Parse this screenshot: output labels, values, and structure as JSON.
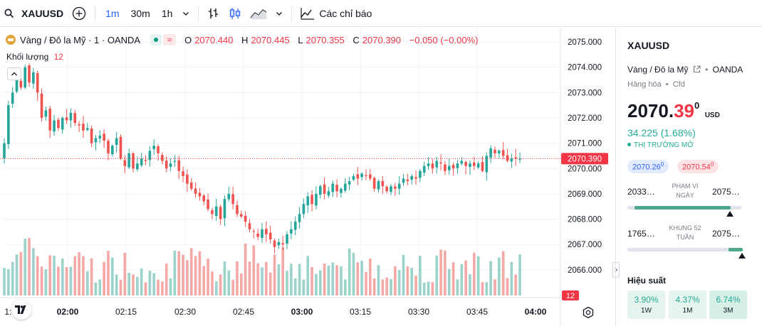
{
  "toolbar": {
    "symbol": "XAUUSD",
    "intervals": [
      "1m",
      "30m",
      "1h"
    ],
    "active_interval": "1m",
    "indicators_label": "Các chỉ báo"
  },
  "legend": {
    "title": "Vàng / Đô la Mỹ · 1 · OANDA",
    "o_label": "O",
    "o_value": "2070.440",
    "h_label": "H",
    "h_value": "2070.445",
    "l_label": "L",
    "l_value": "2070.355",
    "c_label": "C",
    "c_value": "2070.390",
    "change": "−0.050 (−0.00%)"
  },
  "volume_legend": {
    "label": "Khối lượng",
    "value": "12"
  },
  "colors": {
    "up": "#26a69a",
    "down": "#ef5350",
    "accent": "#2962ff",
    "vol_up": "#9bd3cb",
    "vol_down": "#f5a9a6"
  },
  "chart_data": {
    "type": "candlestick",
    "x_ticks": [
      "1:45",
      "02:00",
      "02:15",
      "02:30",
      "02:45",
      "03:00",
      "03:15",
      "03:30",
      "03:45",
      "04:00"
    ],
    "y_ticks": [
      "2075.000",
      "2074.000",
      "2073.000",
      "2072.000",
      "2071.000",
      "2070.000",
      "2069.000",
      "2068.000",
      "2067.000",
      "2066.000"
    ],
    "y_range": [
      2065.0,
      2075.35
    ],
    "last_price": "2070.390",
    "last_price_value": 2070.39,
    "last_volume_label": "12",
    "series_close": [
      2071.0,
      2072.5,
      2073.0,
      2073.5,
      2073.2,
      2074.0,
      2073.4,
      2073.8,
      2073.0,
      2072.0,
      2072.3,
      2071.5,
      2071.9,
      2071.6,
      2072.0,
      2071.9,
      2072.2,
      2071.8,
      2071.7,
      2071.5,
      2071.6,
      2071.0,
      2071.2,
      2071.3,
      2071.1,
      2070.6,
      2070.9,
      2071.2,
      2070.4,
      2070.1,
      2070.6,
      2070.0,
      2070.2,
      2070.4,
      2070.3,
      2070.7,
      2070.9,
      2070.6,
      2070.3,
      2070.0,
      2070.2,
      2070.3,
      2069.9,
      2069.7,
      2069.4,
      2069.2,
      2069.0,
      2068.9,
      2068.7,
      2068.4,
      2068.2,
      2068.5,
      2068.0,
      2068.8,
      2069.0,
      2068.6,
      2068.2,
      2068.1,
      2067.9,
      2067.6,
      2067.5,
      2067.3,
      2067.6,
      2067.4,
      2067.2,
      2066.9,
      2067.1,
      2067.0,
      2067.4,
      2067.6,
      2067.9,
      2068.2,
      2068.6,
      2068.9,
      2068.6,
      2069.0,
      2069.3,
      2069.0,
      2069.1,
      2069.4,
      2069.1,
      2069.2,
      2069.4,
      2069.5,
      2069.7,
      2069.6,
      2069.8,
      2069.7,
      2069.6,
      2069.2,
      2069.5,
      2069.3,
      2069.1,
      2069.3,
      2069.2,
      2069.4,
      2069.6,
      2069.5,
      2069.7,
      2069.6,
      2069.9,
      2070.1,
      2070.2,
      2070.0,
      2070.3,
      2070.2,
      2069.9,
      2070.1,
      2070.0,
      2070.2,
      2070.3,
      2070.1,
      2070.2,
      2070.1,
      2070.2,
      2069.9,
      2070.5,
      2070.8,
      2070.6,
      2070.7,
      2070.5,
      2070.3,
      2070.4,
      2070.4,
      2070.39
    ]
  },
  "side_panel": {
    "symbol": "XAUUSD",
    "description": "Vàng / Đô la Mỹ",
    "exchange": "OANDA",
    "category": "Hàng hóa",
    "type": "Cfd",
    "price_main": "2070.",
    "price_decimals": "39",
    "price_sup": "0",
    "currency": "USD",
    "change": "34.225 (1.68%)",
    "market_status": "THỊ TRƯỜNG MỞ",
    "bid_main": "2070.26",
    "bid_sup": "0",
    "ask_main": "2070.54",
    "ask_sup": "0",
    "day_low": "2033…",
    "day_high": "2075…",
    "day_label": "PHẠM VI NGÀY",
    "week52_low": "1765…",
    "week52_high": "2075…",
    "week52_label": "KHUNG 52 TUẦN",
    "performance_title": "Hiệu suất",
    "perf": [
      {
        "value": "3.90%",
        "period": "1W"
      },
      {
        "value": "4.37%",
        "period": "1M"
      },
      {
        "value": "6.74%",
        "period": "3M"
      }
    ]
  }
}
